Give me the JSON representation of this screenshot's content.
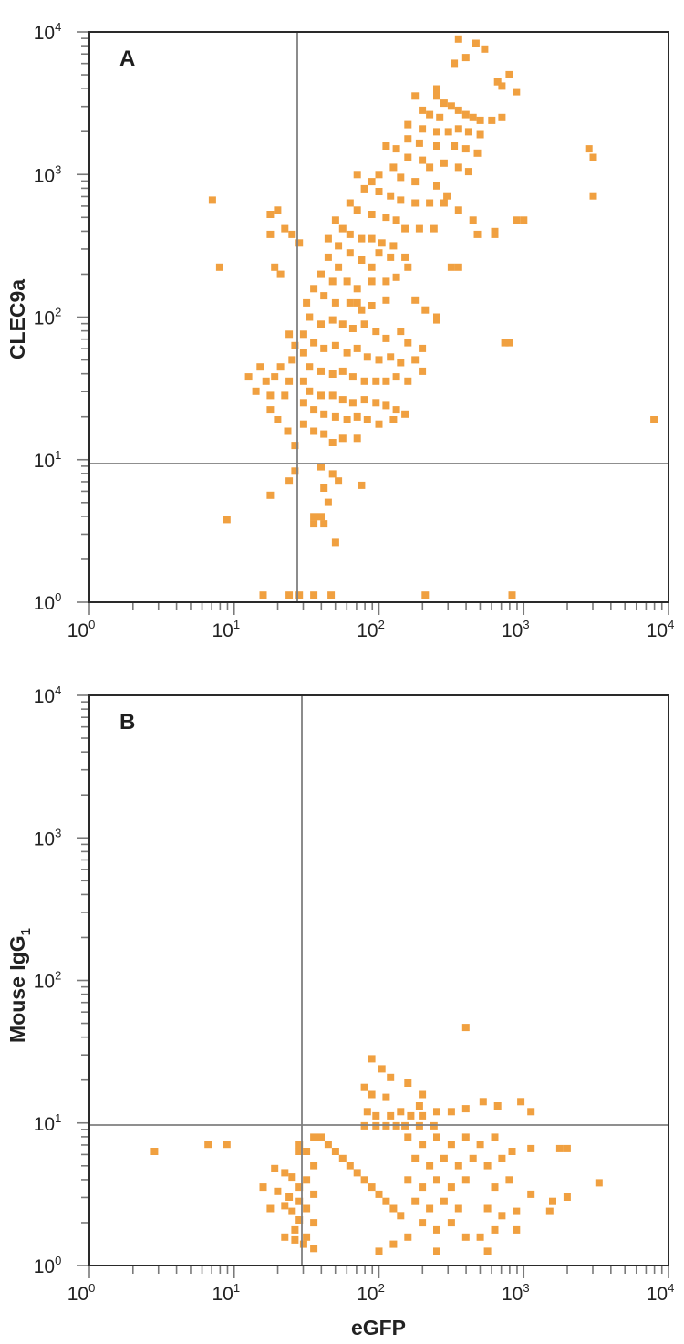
{
  "chart_data": [
    {
      "type": "scatter",
      "panel_label": "A",
      "title": "",
      "xlabel": "",
      "ylabel": "CLEC9a",
      "xscale": "log",
      "yscale": "log",
      "xlim": [
        1,
        10000
      ],
      "ylim": [
        1,
        10000
      ],
      "x_ticks": [
        "10^0",
        "10^1",
        "10^2",
        "10^3",
        "10^4"
      ],
      "y_ticks": [
        "10^0",
        "10^1",
        "10^2",
        "10^3",
        "10^4"
      ],
      "gates": {
        "x": 27,
        "y": 10
      },
      "marker_color": "#F0A040",
      "grid": false,
      "description": "Dot plot (flow cytometry). Main population spans eGFP ~20-1000 and CLEC9a ~10-9000, diagonal trend; sparse events below CLEC9a 10^1 and outliers at right (e.g. ~8000, 19).",
      "points_log10": [
        [
          2.55,
          3.95
        ],
        [
          2.67,
          3.92
        ],
        [
          2.73,
          3.88
        ],
        [
          2.6,
          3.82
        ],
        [
          2.52,
          3.78
        ],
        [
          2.9,
          3.7
        ],
        [
          2.85,
          3.62
        ],
        [
          2.95,
          3.58
        ],
        [
          2.82,
          3.65
        ],
        [
          2.4,
          3.6
        ],
        [
          2.25,
          3.55
        ],
        [
          2.4,
          3.55
        ],
        [
          2.45,
          3.5
        ],
        [
          2.5,
          3.48
        ],
        [
          2.3,
          3.45
        ],
        [
          2.35,
          3.42
        ],
        [
          2.42,
          3.4
        ],
        [
          2.55,
          3.45
        ],
        [
          2.6,
          3.42
        ],
        [
          2.65,
          3.4
        ],
        [
          2.7,
          3.38
        ],
        [
          2.78,
          3.38
        ],
        [
          2.85,
          3.4
        ],
        [
          2.2,
          3.35
        ],
        [
          2.3,
          3.32
        ],
        [
          2.4,
          3.3
        ],
        [
          2.48,
          3.3
        ],
        [
          2.55,
          3.32
        ],
        [
          2.62,
          3.3
        ],
        [
          2.7,
          3.28
        ],
        [
          2.2,
          3.25
        ],
        [
          2.28,
          3.22
        ],
        [
          2.4,
          3.2
        ],
        [
          2.52,
          3.2
        ],
        [
          2.6,
          3.18
        ],
        [
          2.68,
          3.15
        ],
        [
          2.05,
          3.2
        ],
        [
          2.12,
          3.18
        ],
        [
          2.2,
          3.12
        ],
        [
          2.3,
          3.1
        ],
        [
          2.35,
          3.05
        ],
        [
          2.45,
          3.08
        ],
        [
          2.55,
          3.05
        ],
        [
          2.62,
          3.02
        ],
        [
          2.1,
          3.05
        ],
        [
          2.0,
          3.0
        ],
        [
          2.15,
          2.98
        ],
        [
          2.25,
          2.95
        ],
        [
          2.4,
          2.92
        ],
        [
          2.47,
          2.85
        ],
        [
          1.85,
          3.0
        ],
        [
          1.95,
          2.95
        ],
        [
          1.9,
          2.9
        ],
        [
          2.0,
          2.88
        ],
        [
          2.08,
          2.85
        ],
        [
          2.15,
          2.82
        ],
        [
          2.25,
          2.8
        ],
        [
          2.35,
          2.8
        ],
        [
          2.45,
          2.8
        ],
        [
          2.55,
          2.75
        ],
        [
          1.8,
          2.8
        ],
        [
          1.85,
          2.75
        ],
        [
          1.95,
          2.72
        ],
        [
          2.05,
          2.7
        ],
        [
          2.12,
          2.68
        ],
        [
          2.18,
          2.62
        ],
        [
          2.28,
          2.62
        ],
        [
          2.38,
          2.62
        ],
        [
          2.65,
          2.68
        ],
        [
          2.8,
          2.6
        ],
        [
          2.95,
          2.68
        ],
        [
          3.45,
          3.18
        ],
        [
          3.48,
          3.12
        ],
        [
          3.48,
          2.85
        ],
        [
          1.7,
          2.68
        ],
        [
          1.75,
          2.62
        ],
        [
          1.8,
          2.58
        ],
        [
          1.88,
          2.55
        ],
        [
          1.95,
          2.55
        ],
        [
          2.02,
          2.52
        ],
        [
          2.1,
          2.5
        ],
        [
          2.0,
          2.45
        ],
        [
          2.08,
          2.42
        ],
        [
          2.18,
          2.42
        ],
        [
          2.2,
          2.35
        ],
        [
          2.5,
          2.35
        ],
        [
          1.65,
          2.55
        ],
        [
          1.72,
          2.5
        ],
        [
          1.8,
          2.45
        ],
        [
          1.88,
          2.4
        ],
        [
          1.95,
          2.35
        ],
        [
          1.72,
          2.35
        ],
        [
          1.65,
          2.42
        ],
        [
          1.6,
          2.3
        ],
        [
          1.68,
          2.25
        ],
        [
          1.78,
          2.25
        ],
        [
          1.85,
          2.2
        ],
        [
          1.95,
          2.25
        ],
        [
          2.05,
          2.25
        ],
        [
          2.12,
          2.28
        ],
        [
          1.55,
          2.2
        ],
        [
          1.62,
          2.15
        ],
        [
          1.7,
          2.1
        ],
        [
          1.8,
          2.1
        ],
        [
          1.88,
          2.05
        ],
        [
          1.95,
          2.08
        ],
        [
          2.05,
          2.12
        ],
        [
          2.25,
          2.12
        ],
        [
          2.32,
          2.05
        ],
        [
          1.5,
          2.1
        ],
        [
          1.52,
          2.0
        ],
        [
          1.6,
          1.95
        ],
        [
          1.68,
          1.98
        ],
        [
          1.75,
          1.95
        ],
        [
          1.82,
          1.92
        ],
        [
          1.9,
          1.95
        ],
        [
          1.98,
          1.9
        ],
        [
          2.05,
          1.85
        ],
        [
          2.15,
          1.9
        ],
        [
          2.2,
          1.82
        ],
        [
          2.3,
          1.78
        ],
        [
          2.4,
          2.0
        ],
        [
          2.87,
          1.82
        ],
        [
          1.48,
          1.88
        ],
        [
          1.55,
          1.82
        ],
        [
          1.62,
          1.78
        ],
        [
          1.7,
          1.8
        ],
        [
          1.78,
          1.75
        ],
        [
          1.85,
          1.78
        ],
        [
          1.92,
          1.72
        ],
        [
          2.0,
          1.7
        ],
        [
          2.08,
          1.72
        ],
        [
          2.15,
          1.68
        ],
        [
          2.25,
          1.7
        ],
        [
          2.3,
          1.62
        ],
        [
          1.48,
          1.75
        ],
        [
          1.52,
          1.65
        ],
        [
          1.6,
          1.62
        ],
        [
          1.68,
          1.6
        ],
        [
          1.75,
          1.62
        ],
        [
          1.82,
          1.58
        ],
        [
          1.9,
          1.55
        ],
        [
          1.98,
          1.55
        ],
        [
          2.05,
          1.55
        ],
        [
          2.12,
          1.58
        ],
        [
          2.2,
          1.55
        ],
        [
          1.48,
          1.55
        ],
        [
          1.52,
          1.48
        ],
        [
          1.6,
          1.45
        ],
        [
          1.68,
          1.45
        ],
        [
          1.75,
          1.42
        ],
        [
          1.82,
          1.4
        ],
        [
          1.9,
          1.42
        ],
        [
          1.98,
          1.4
        ],
        [
          2.05,
          1.38
        ],
        [
          2.12,
          1.35
        ],
        [
          2.18,
          1.32
        ],
        [
          1.48,
          1.4
        ],
        [
          1.55,
          1.35
        ],
        [
          1.62,
          1.32
        ],
        [
          1.7,
          1.3
        ],
        [
          1.78,
          1.28
        ],
        [
          1.85,
          1.3
        ],
        [
          1.92,
          1.28
        ],
        [
          2.0,
          1.25
        ],
        [
          2.1,
          1.28
        ],
        [
          1.48,
          1.25
        ],
        [
          1.55,
          1.2
        ],
        [
          1.62,
          1.18
        ],
        [
          1.68,
          1.12
        ],
        [
          1.75,
          1.15
        ],
        [
          1.85,
          1.15
        ],
        [
          1.42,
          1.1
        ],
        [
          1.37,
          1.2
        ],
        [
          1.3,
          1.28
        ],
        [
          1.25,
          1.35
        ],
        [
          1.35,
          1.45
        ],
        [
          1.38,
          1.55
        ],
        [
          1.32,
          1.65
        ],
        [
          1.4,
          1.7
        ],
        [
          1.28,
          1.58
        ],
        [
          1.18,
          1.65
        ],
        [
          1.22,
          1.55
        ],
        [
          1.1,
          1.58
        ],
        [
          1.15,
          1.48
        ],
        [
          1.25,
          1.45
        ],
        [
          1.42,
          1.8
        ],
        [
          1.38,
          1.88
        ],
        [
          1.25,
          2.58
        ],
        [
          1.35,
          2.62
        ],
        [
          1.4,
          2.58
        ],
        [
          1.45,
          2.52
        ],
        [
          1.25,
          2.72
        ],
        [
          1.3,
          2.75
        ],
        [
          0.85,
          2.82
        ],
        [
          0.9,
          2.35
        ],
        [
          1.28,
          2.35
        ],
        [
          1.32,
          2.3
        ],
        [
          1.85,
          2.1
        ],
        [
          2.9,
          1.82
        ],
        [
          3.9,
          1.28
        ],
        [
          2.4,
          1.98
        ],
        [
          2.55,
          2.35
        ],
        [
          2.68,
          2.58
        ],
        [
          2.8,
          2.58
        ],
        [
          3.0,
          2.68
        ],
        [
          1.42,
          0.92
        ],
        [
          1.6,
          0.95
        ],
        [
          1.68,
          0.9
        ],
        [
          1.38,
          0.85
        ],
        [
          1.62,
          0.8
        ],
        [
          1.72,
          0.85
        ],
        [
          1.88,
          0.82
        ],
        [
          1.25,
          0.75
        ],
        [
          1.65,
          0.7
        ],
        [
          1.55,
          0.6
        ],
        [
          1.6,
          0.6
        ],
        [
          1.62,
          0.55
        ],
        [
          1.55,
          0.55
        ],
        [
          0.95,
          0.58
        ],
        [
          1.7,
          0.42
        ],
        [
          1.2,
          0.05
        ],
        [
          1.38,
          0.05
        ],
        [
          1.45,
          0.05
        ],
        [
          1.55,
          0.05
        ],
        [
          1.67,
          0.05
        ],
        [
          2.32,
          0.05
        ],
        [
          2.92,
          0.05
        ]
      ]
    },
    {
      "type": "scatter",
      "panel_label": "B",
      "title": "",
      "xlabel": "eGFP",
      "ylabel": "Mouse IgG1",
      "ylabel_main": "Mouse IgG",
      "ylabel_subscript": "1",
      "xscale": "log",
      "yscale": "log",
      "xlim": [
        1,
        10000
      ],
      "ylim": [
        1,
        10000
      ],
      "x_ticks": [
        "10^0",
        "10^1",
        "10^2",
        "10^3",
        "10^4"
      ],
      "y_ticks": [
        "10^0",
        "10^1",
        "10^2",
        "10^3",
        "10^4"
      ],
      "gates": {
        "x": 29,
        "y": 10
      },
      "marker_color": "#F0A040",
      "grid": false,
      "description": "Isotype control dot plot. Population confined mostly below 10^1 on y (1-10), spanning eGFP ~15-3000; few events above 10^1, outlier ~ (400, 47).",
      "points_log10": [
        [
          2.6,
          1.67
        ],
        [
          1.95,
          1.45
        ],
        [
          2.02,
          1.38
        ],
        [
          2.08,
          1.32
        ],
        [
          2.2,
          1.28
        ],
        [
          1.9,
          1.25
        ],
        [
          1.95,
          1.2
        ],
        [
          2.05,
          1.18
        ],
        [
          2.3,
          1.2
        ],
        [
          2.28,
          1.12
        ],
        [
          1.92,
          1.08
        ],
        [
          1.98,
          1.05
        ],
        [
          2.08,
          1.05
        ],
        [
          2.15,
          1.08
        ],
        [
          2.22,
          1.05
        ],
        [
          2.3,
          1.05
        ],
        [
          2.4,
          1.08
        ],
        [
          2.5,
          1.08
        ],
        [
          2.6,
          1.1
        ],
        [
          2.72,
          1.15
        ],
        [
          2.82,
          1.12
        ],
        [
          2.98,
          1.15
        ],
        [
          3.05,
          1.08
        ],
        [
          1.9,
          0.98
        ],
        [
          1.98,
          0.98
        ],
        [
          2.05,
          0.98
        ],
        [
          2.12,
          0.98
        ],
        [
          2.18,
          0.98
        ],
        [
          2.28,
          0.98
        ],
        [
          2.38,
          0.98
        ],
        [
          1.6,
          0.9
        ],
        [
          1.65,
          0.85
        ],
        [
          1.7,
          0.8
        ],
        [
          1.75,
          0.75
        ],
        [
          1.8,
          0.7
        ],
        [
          1.85,
          0.65
        ],
        [
          1.9,
          0.6
        ],
        [
          1.95,
          0.55
        ],
        [
          2.0,
          0.5
        ],
        [
          2.05,
          0.45
        ],
        [
          2.1,
          0.4
        ],
        [
          2.15,
          0.35
        ],
        [
          1.55,
          0.9
        ],
        [
          1.5,
          0.8
        ],
        [
          1.55,
          0.7
        ],
        [
          1.5,
          0.6
        ],
        [
          1.55,
          0.5
        ],
        [
          1.5,
          0.4
        ],
        [
          1.55,
          0.3
        ],
        [
          1.5,
          0.2
        ],
        [
          1.55,
          0.12
        ],
        [
          2.2,
          0.9
        ],
        [
          2.3,
          0.85
        ],
        [
          2.4,
          0.9
        ],
        [
          2.5,
          0.85
        ],
        [
          2.6,
          0.9
        ],
        [
          2.7,
          0.85
        ],
        [
          2.8,
          0.9
        ],
        [
          2.25,
          0.75
        ],
        [
          2.35,
          0.7
        ],
        [
          2.45,
          0.75
        ],
        [
          2.55,
          0.7
        ],
        [
          2.65,
          0.75
        ],
        [
          2.2,
          0.6
        ],
        [
          2.3,
          0.55
        ],
        [
          2.4,
          0.6
        ],
        [
          2.5,
          0.55
        ],
        [
          2.6,
          0.6
        ],
        [
          2.25,
          0.45
        ],
        [
          2.35,
          0.4
        ],
        [
          2.45,
          0.45
        ],
        [
          2.55,
          0.4
        ],
        [
          2.3,
          0.3
        ],
        [
          2.4,
          0.25
        ],
        [
          2.5,
          0.3
        ],
        [
          2.2,
          0.2
        ],
        [
          2.6,
          0.2
        ],
        [
          2.75,
          0.7
        ],
        [
          2.85,
          0.75
        ],
        [
          2.92,
          0.8
        ],
        [
          3.05,
          0.82
        ],
        [
          3.25,
          0.82
        ],
        [
          3.3,
          0.82
        ],
        [
          2.8,
          0.55
        ],
        [
          2.9,
          0.6
        ],
        [
          3.05,
          0.5
        ],
        [
          3.2,
          0.45
        ],
        [
          3.3,
          0.48
        ],
        [
          3.18,
          0.38
        ],
        [
          3.52,
          0.58
        ],
        [
          2.75,
          0.4
        ],
        [
          2.85,
          0.35
        ],
        [
          2.95,
          0.38
        ],
        [
          2.8,
          0.25
        ],
        [
          2.95,
          0.25
        ],
        [
          2.7,
          0.2
        ],
        [
          2.75,
          0.1
        ],
        [
          2.1,
          0.15
        ],
        [
          2.0,
          0.1
        ],
        [
          2.4,
          0.1
        ],
        [
          1.4,
          0.62
        ],
        [
          1.45,
          0.55
        ],
        [
          1.3,
          0.52
        ],
        [
          1.38,
          0.48
        ],
        [
          1.45,
          0.45
        ],
        [
          1.35,
          0.42
        ],
        [
          1.4,
          0.38
        ],
        [
          1.45,
          0.32
        ],
        [
          1.42,
          0.25
        ],
        [
          1.35,
          0.2
        ],
        [
          1.42,
          0.18
        ],
        [
          1.48,
          0.15
        ],
        [
          1.25,
          0.4
        ],
        [
          1.2,
          0.55
        ],
        [
          1.45,
          0.85
        ],
        [
          1.45,
          0.8
        ],
        [
          1.28,
          0.68
        ],
        [
          1.35,
          0.65
        ],
        [
          0.45,
          0.8
        ],
        [
          0.82,
          0.85
        ],
        [
          0.95,
          0.85
        ]
      ]
    }
  ],
  "panels": {
    "a": {
      "label": "A",
      "ylabel": "CLEC9a"
    },
    "b": {
      "label": "B",
      "ylabel_main": "Mouse IgG",
      "ylabel_sub": "1",
      "xlabel": "eGFP"
    }
  },
  "axis_ticks": {
    "base": "10",
    "exponents": [
      "0",
      "1",
      "2",
      "3",
      "4"
    ]
  }
}
